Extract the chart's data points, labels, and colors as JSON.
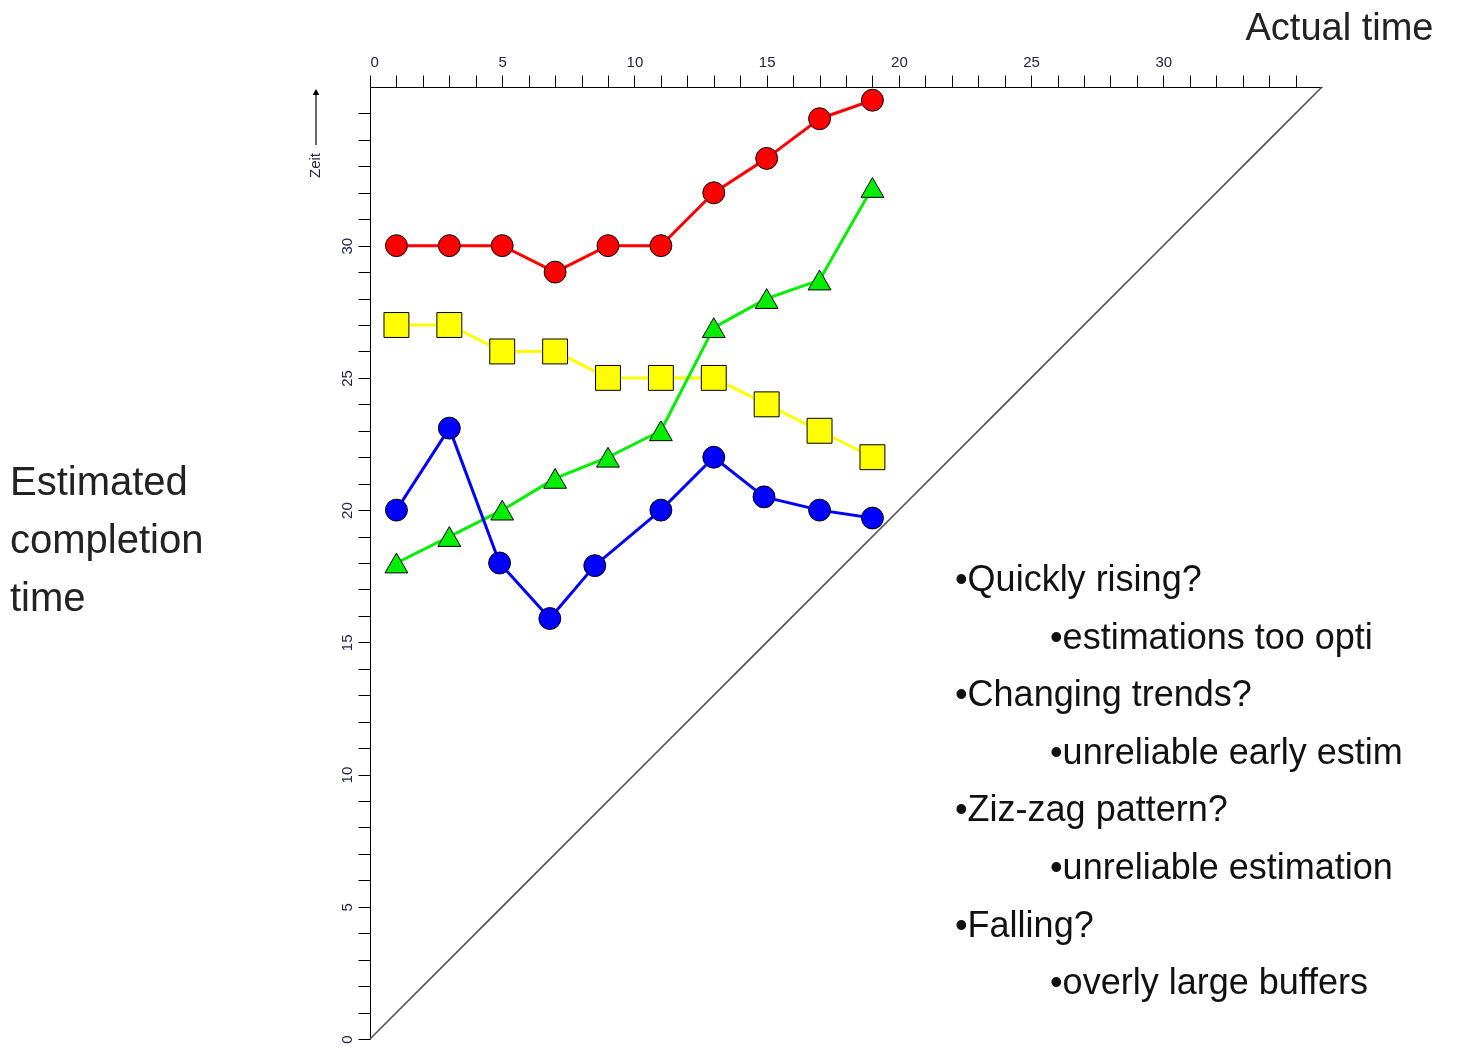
{
  "chart_data": {
    "type": "line",
    "xlabel": "Actual time",
    "ylabel": "Zeit",
    "xlim": [
      0,
      36
    ],
    "ylim": [
      0,
      36
    ],
    "xticks": [
      0,
      {
        "value": 1,
        "label": null
      },
      {
        "value": 2,
        "label": null
      },
      {
        "value": 3,
        "label": null
      },
      {
        "value": 4,
        "label": null
      },
      5,
      {
        "value": 6,
        "label": null
      },
      {
        "value": 7,
        "label": null
      },
      {
        "value": 8,
        "label": null
      },
      {
        "value": 9,
        "label": null
      },
      10,
      {
        "value": 11,
        "label": null
      },
      {
        "value": 12,
        "label": null
      },
      {
        "value": 13,
        "label": null
      },
      {
        "value": 14,
        "label": null
      },
      15,
      {
        "value": 16,
        "label": null
      },
      {
        "value": 17,
        "label": null
      },
      {
        "value": 18,
        "label": null
      },
      {
        "value": 19,
        "label": null
      },
      20,
      {
        "value": 21,
        "label": null
      },
      {
        "value": 22,
        "label": null
      },
      {
        "value": 23,
        "label": null
      },
      {
        "value": 24,
        "label": null
      },
      25,
      {
        "value": 26,
        "label": null
      },
      {
        "value": 27,
        "label": null
      },
      {
        "value": 28,
        "label": null
      },
      {
        "value": 29,
        "label": null
      },
      30,
      {
        "value": 31,
        "label": null
      },
      {
        "value": 32,
        "label": null
      },
      {
        "value": 33,
        "label": null
      },
      {
        "value": 34,
        "label": null
      },
      {
        "value": 35,
        "label": null
      }
    ],
    "yticks": [
      0,
      {
        "value": 1,
        "label": null
      },
      {
        "value": 2,
        "label": null
      },
      {
        "value": 3,
        "label": null
      },
      {
        "value": 4,
        "label": null
      },
      5,
      {
        "value": 6,
        "label": null
      },
      {
        "value": 7,
        "label": null
      },
      {
        "value": 8,
        "label": null
      },
      {
        "value": 9,
        "label": null
      },
      10,
      {
        "value": 11,
        "label": null
      },
      {
        "value": 12,
        "label": null
      },
      {
        "value": 13,
        "label": null
      },
      {
        "value": 14,
        "label": null
      },
      15,
      {
        "value": 16,
        "label": null
      },
      {
        "value": 17,
        "label": null
      },
      {
        "value": 18,
        "label": null
      },
      {
        "value": 19,
        "label": null
      },
      20,
      {
        "value": 21,
        "label": null
      },
      {
        "value": 22,
        "label": null
      },
      {
        "value": 23,
        "label": null
      },
      {
        "value": 24,
        "label": null
      },
      25,
      {
        "value": 26,
        "label": null
      },
      {
        "value": 27,
        "label": null
      },
      {
        "value": 28,
        "label": null
      },
      {
        "value": 29,
        "label": null
      },
      30,
      {
        "value": 31,
        "label": null
      },
      {
        "value": 32,
        "label": null
      },
      {
        "value": 33,
        "label": null
      },
      {
        "value": 34,
        "label": null
      },
      {
        "value": 35,
        "label": null
      }
    ],
    "series": [
      {
        "type": "line",
        "color": "#555555",
        "marker": "none",
        "x": [
          0,
          36
        ],
        "values": [
          0,
          36
        ]
      },
      {
        "color": "#ff0000",
        "marker": "circle",
        "x": [
          1,
          3,
          5,
          7,
          9,
          11,
          13,
          15,
          17,
          19
        ],
        "values": [
          30,
          30,
          30,
          29,
          30,
          30,
          32,
          33.3,
          34.8,
          35.5
        ]
      },
      {
        "color": "#ffff00",
        "marker": "square",
        "x": [
          1,
          3,
          5,
          7,
          9,
          11,
          13,
          15,
          17,
          19
        ],
        "values": [
          27,
          27,
          26,
          26,
          25,
          25,
          25,
          24,
          23,
          22
        ]
      },
      {
        "color": "#00ee00",
        "marker": "triangle",
        "x": [
          1,
          3,
          5,
          7,
          9,
          11,
          13,
          15,
          17,
          19
        ],
        "values": [
          18,
          19,
          20,
          21.2,
          22,
          23,
          26.9,
          28,
          28.7,
          32.2
        ]
      },
      {
        "color": "#0000ff",
        "marker": "circle",
        "x": [
          1,
          3,
          4.9,
          6.8,
          8.5,
          11,
          13,
          14.9,
          17,
          19
        ],
        "values": [
          20,
          23.1,
          18,
          15.9,
          17.9,
          20,
          22,
          20.5,
          20,
          19.7
        ]
      }
    ],
    "annotations": [
      "Estimated completion time",
      "•Quickly rising?",
      "•estimations too opti",
      "•Changing trends?",
      "•unreliable early estim",
      "•Ziz-zag pattern?",
      "•unreliable estimation",
      "•Falling?",
      "•overly large buffers"
    ]
  }
}
